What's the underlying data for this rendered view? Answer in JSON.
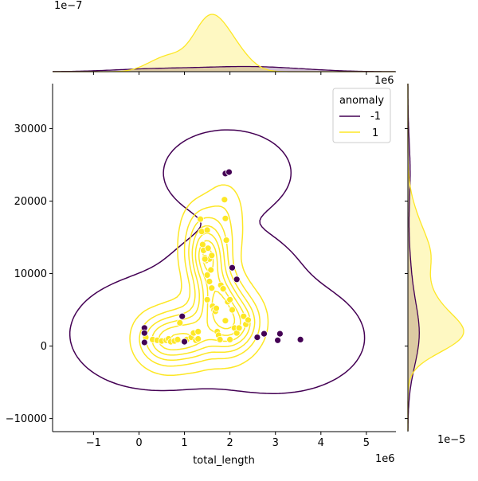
{
  "chart_data": {
    "type": "scatter",
    "subtype": "jointplot-kde",
    "xlabel": "total_length",
    "ylabel": "",
    "x_offset_label": "1e6",
    "y_offset_label": "",
    "xlim": [
      -1.9,
      5.65
    ],
    "ylim": [
      -11800,
      36200
    ],
    "x_ticks": [
      -1,
      0,
      1,
      2,
      3,
      4,
      5
    ],
    "y_ticks": [
      -10000,
      0,
      10000,
      20000,
      30000
    ],
    "top_marginal_offset_label": "1e−7",
    "right_marginal_offset_label": "1e−5",
    "right_top_offset_label": "1e6",
    "legend": {
      "title": "anomaly",
      "placement": "top-right",
      "entries": [
        {
          "label": "-1",
          "color": "#440154"
        },
        {
          "label": "1",
          "color": "#fde725"
        }
      ]
    },
    "series": [
      {
        "name": "-1",
        "color": "#440154",
        "x": [
          0.12,
          0.12,
          0.12,
          0.95,
          1.0,
          1.9,
          1.98,
          2.05,
          2.15,
          2.6,
          2.75,
          3.05,
          3.1,
          3.55
        ],
        "y": [
          2500,
          1800,
          500,
          4100,
          600,
          23800,
          24000,
          10800,
          9200,
          1200,
          1700,
          800,
          1700,
          900
        ]
      },
      {
        "name": "1",
        "color": "#fde725",
        "x": [
          0.15,
          0.3,
          0.4,
          0.5,
          0.6,
          0.65,
          0.7,
          0.78,
          0.85,
          0.9,
          1.05,
          1.15,
          1.2,
          1.25,
          1.3,
          1.35,
          1.38,
          1.4,
          1.42,
          1.45,
          1.48,
          1.5,
          1.52,
          1.55,
          1.58,
          1.6,
          1.62,
          1.65,
          1.68,
          1.7,
          1.72,
          1.75,
          1.78,
          1.8,
          1.85,
          1.88,
          1.9,
          1.92,
          1.95,
          2.0,
          2.05,
          2.1,
          2.15,
          2.2,
          2.3,
          2.35,
          2.4,
          1.45,
          1.5,
          1.55,
          1.6,
          1.5,
          1.3,
          1.9,
          2.0
        ],
        "y": [
          1200,
          900,
          800,
          700,
          800,
          1000,
          600,
          700,
          900,
          3200,
          900,
          1200,
          1800,
          800,
          1000,
          17500,
          15800,
          14000,
          13200,
          12200,
          11800,
          16000,
          13500,
          12000,
          10500,
          8000,
          5500,
          5000,
          4800,
          5200,
          2000,
          1500,
          900,
          8400,
          7900,
          20200,
          17600,
          14600,
          6100,
          6400,
          5000,
          2500,
          1800,
          2500,
          4100,
          3000,
          3600,
          12000,
          9800,
          8900,
          12500,
          6400,
          2000,
          3500,
          900
        ]
      }
    ]
  }
}
